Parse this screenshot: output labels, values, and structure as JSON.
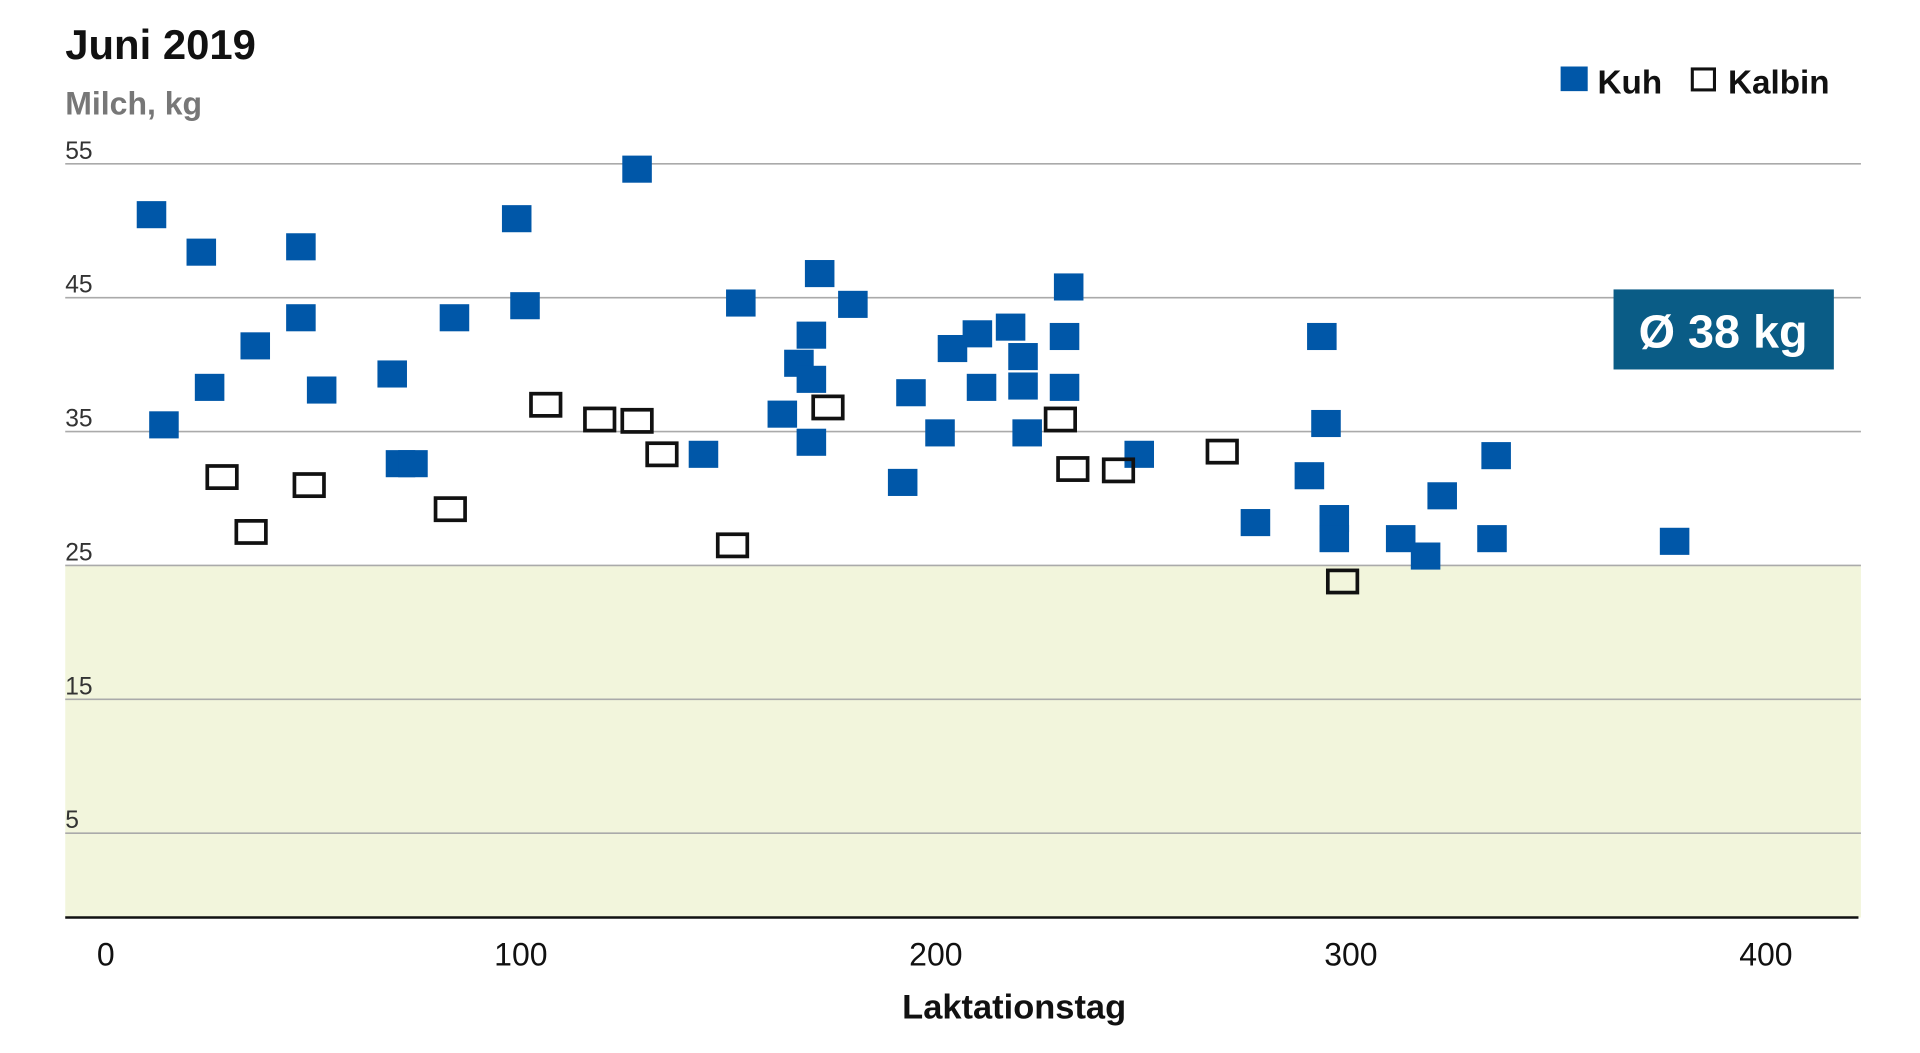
{
  "chart_data": {
    "type": "scatter",
    "title": "Juni 2019",
    "ylabel": "Milch, kg",
    "xlabel": "Laktationstag",
    "xlim": [
      -10,
      420
    ],
    "ylim": [
      -1.3,
      55
    ],
    "xticks": [
      0,
      100,
      200,
      300,
      400
    ],
    "xtick_labels": [
      "0",
      "100",
      "200",
      "300",
      "400"
    ],
    "yticks": [
      55,
      45,
      35,
      25,
      15,
      5
    ],
    "ytick_labels": [
      "55",
      "45",
      "35",
      "25",
      "15",
      "5"
    ],
    "grid": true,
    "shaded_below": 25,
    "legend_position": "top-right",
    "annotation": "Ø 38 kg",
    "colors": {
      "kuh": "#0057a8",
      "kalbin": "#111111",
      "shade": "#f2f5dc",
      "annotation_bg": "#0a5c86"
    },
    "series": [
      {
        "name": "Kuh",
        "marker": "filled-square",
        "points": [
          [
            11,
            51.2
          ],
          [
            14,
            35.5
          ],
          [
            23,
            48.4
          ],
          [
            25,
            38.3
          ],
          [
            36,
            41.4
          ],
          [
            47,
            48.8
          ],
          [
            47,
            43.5
          ],
          [
            52,
            38.1
          ],
          [
            69,
            39.3
          ],
          [
            71,
            32.6
          ],
          [
            74,
            32.6
          ],
          [
            84,
            43.5
          ],
          [
            99,
            50.9
          ],
          [
            101,
            44.4
          ],
          [
            128,
            54.6
          ],
          [
            144,
            33.3
          ],
          [
            153,
            44.6
          ],
          [
            163,
            36.3
          ],
          [
            167,
            40.1
          ],
          [
            170,
            38.9
          ],
          [
            170,
            42.2
          ],
          [
            170,
            34.2
          ],
          [
            172,
            46.8
          ],
          [
            180,
            44.5
          ],
          [
            192,
            31.2
          ],
          [
            194,
            37.9
          ],
          [
            201,
            34.9
          ],
          [
            204,
            41.2
          ],
          [
            210,
            42.3
          ],
          [
            211,
            38.3
          ],
          [
            218,
            42.8
          ],
          [
            221,
            40.6
          ],
          [
            221,
            38.4
          ],
          [
            222,
            34.9
          ],
          [
            231,
            42.1
          ],
          [
            231,
            38.3
          ],
          [
            232,
            45.8
          ],
          [
            249,
            33.3
          ],
          [
            277,
            28.2
          ],
          [
            290,
            31.7
          ],
          [
            293,
            42.1
          ],
          [
            294,
            35.6
          ],
          [
            296,
            28.5
          ],
          [
            296,
            27.0
          ],
          [
            312,
            27.0
          ],
          [
            318,
            25.7
          ],
          [
            322,
            30.2
          ],
          [
            334,
            27.0
          ],
          [
            335,
            33.2
          ],
          [
            378,
            26.8
          ]
        ]
      },
      {
        "name": "Kalbin",
        "marker": "hollow-square",
        "points": [
          [
            28,
            31.6
          ],
          [
            35,
            27.5
          ],
          [
            49,
            31.0
          ],
          [
            83,
            29.2
          ],
          [
            106,
            37.0
          ],
          [
            119,
            35.9
          ],
          [
            128,
            35.8
          ],
          [
            134,
            33.3
          ],
          [
            151,
            26.5
          ],
          [
            174,
            36.8
          ],
          [
            230,
            35.9
          ],
          [
            233,
            32.2
          ],
          [
            244,
            32.1
          ],
          [
            269,
            33.5
          ],
          [
            298,
            23.8
          ]
        ]
      }
    ]
  }
}
